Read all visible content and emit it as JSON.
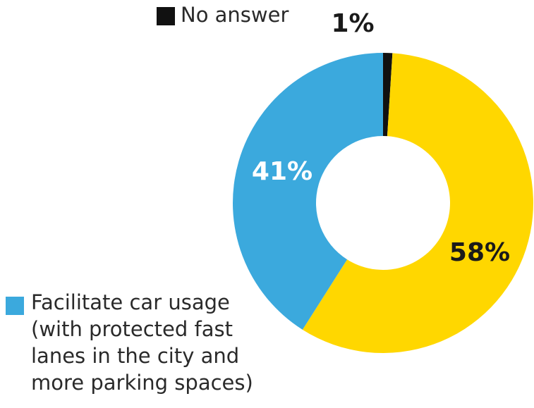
{
  "chart_data": {
    "type": "pie",
    "style": "donut",
    "slices": [
      {
        "label": "No answer",
        "value": 1,
        "display": "1%",
        "color": "#111111"
      },
      {
        "label": "",
        "value": 58,
        "display": "58%",
        "color": "#FFD700"
      },
      {
        "label": "Facilitate car usage (with protected fast lanes in the city and more parking spaces)",
        "value": 41,
        "display": "41%",
        "color": "#3BA9DD"
      }
    ]
  },
  "legend": {
    "no_answer": {
      "text": "No answer",
      "color": "#111111"
    },
    "car_usage": {
      "lines": [
        "Facilitate car usage",
        "(with protected fast",
        "lanes in the city and",
        "more parking spaces)"
      ],
      "color": "#3BA9DD"
    }
  }
}
